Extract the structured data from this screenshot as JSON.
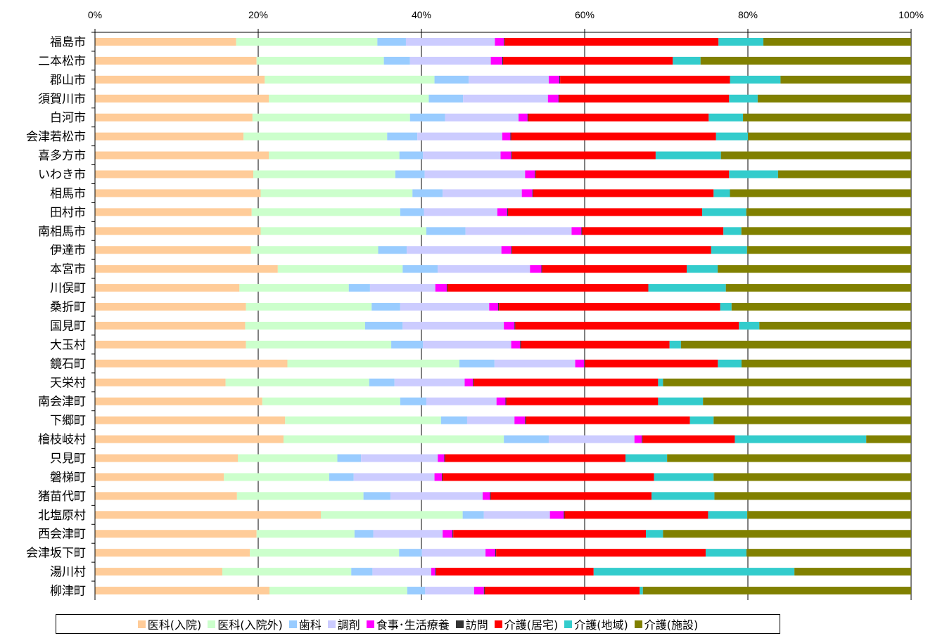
{
  "chart_data": {
    "type": "bar",
    "orientation": "horizontal",
    "stacked": true,
    "percent": true,
    "xlim": [
      0,
      100
    ],
    "x_ticks": [
      "0%",
      "20%",
      "40%",
      "60%",
      "80%",
      "100%"
    ],
    "x_axis_position": "top",
    "grid": true,
    "legend_position": "bottom",
    "categories": [
      "福島市",
      "二本松市",
      "郡山市",
      "須賀川市",
      "白河市",
      "会津若松市",
      "喜多方市",
      "いわき市",
      "相馬市",
      "田村市",
      "南相馬市",
      "伊達市",
      "本宮市",
      "川俣町",
      "桑折町",
      "国見町",
      "大玉村",
      "鏡石町",
      "天栄村",
      "南会津町",
      "下郷町",
      "檜枝岐村",
      "只見町",
      "磐梯町",
      "猪苗代町",
      "北塩原村",
      "西会津町",
      "会津坂下町",
      "湯川村",
      "柳津町"
    ],
    "series": [
      {
        "name": "医科(入院)",
        "color": "#FFCC99",
        "values": [
          17.3,
          19.8,
          20.8,
          21.3,
          19.3,
          18.2,
          21.3,
          19.4,
          20.3,
          19.2,
          20.3,
          19.1,
          22.4,
          17.7,
          18.5,
          18.4,
          18.5,
          23.6,
          16.0,
          20.5,
          23.3,
          23.1,
          17.5,
          15.8,
          17.4,
          27.7,
          19.8,
          19.0,
          15.6,
          21.4
        ]
      },
      {
        "name": "医科(入院外)",
        "color": "#CCFFCC",
        "values": [
          17.3,
          15.6,
          20.8,
          19.6,
          19.3,
          17.6,
          16.0,
          17.4,
          18.6,
          18.2,
          20.3,
          15.6,
          15.3,
          13.4,
          15.4,
          14.7,
          17.8,
          21.1,
          17.6,
          16.9,
          19.1,
          27.0,
          12.2,
          12.9,
          15.5,
          17.4,
          12.0,
          18.3,
          15.8,
          16.9
        ]
      },
      {
        "name": "歯科",
        "color": "#99CCFF",
        "values": [
          3.5,
          3.2,
          4.2,
          4.2,
          4.3,
          3.7,
          2.9,
          3.6,
          3.7,
          2.9,
          4.8,
          3.5,
          4.3,
          2.6,
          3.5,
          4.6,
          3.9,
          4.3,
          3.1,
          3.2,
          3.2,
          5.5,
          2.9,
          3.0,
          3.3,
          2.6,
          2.3,
          2.8,
          2.6,
          2.2
        ]
      },
      {
        "name": "調剤",
        "color": "#CCCCFF",
        "values": [
          10.9,
          9.9,
          9.8,
          10.4,
          9.0,
          10.4,
          9.5,
          12.3,
          9.7,
          9.0,
          13.0,
          11.6,
          11.3,
          8.0,
          10.9,
          12.4,
          10.8,
          9.9,
          8.6,
          8.6,
          5.8,
          10.5,
          9.4,
          9.9,
          11.3,
          8.1,
          8.5,
          7.8,
          7.2,
          6.0
        ]
      },
      {
        "name": "食事･生活療養",
        "color": "#FF00FF",
        "values": [
          1.1,
          1.4,
          1.3,
          1.3,
          1.1,
          1.0,
          1.3,
          1.2,
          1.3,
          1.2,
          1.2,
          1.2,
          1.4,
          1.4,
          1.1,
          1.3,
          1.1,
          1.1,
          1.0,
          1.1,
          1.3,
          0.9,
          0.8,
          0.9,
          0.9,
          1.7,
          1.2,
          1.2,
          0.5,
          1.2
        ]
      },
      {
        "name": "訪問",
        "color": "#333333",
        "values": [
          0.1,
          0.1,
          0.1,
          0.1,
          0.1,
          0.1,
          0.1,
          0.1,
          0.1,
          0.1,
          0.1,
          0.1,
          0.1,
          0.1,
          0.1,
          0.1,
          0.1,
          0.1,
          0.1,
          0.1,
          0.1,
          0.1,
          0.1,
          0.1,
          0.1,
          0.1,
          0.1,
          0.1,
          0.1,
          0.1
        ]
      },
      {
        "name": "介護(居宅)",
        "color": "#FF0000",
        "values": [
          26.2,
          20.8,
          20.8,
          20.8,
          22.1,
          25.1,
          17.6,
          23.7,
          22.1,
          23.8,
          17.3,
          24.4,
          17.7,
          24.6,
          27.1,
          27.4,
          18.2,
          16.3,
          22.6,
          18.6,
          20.1,
          11.3,
          22.1,
          25.9,
          19.7,
          17.6,
          23.6,
          25.7,
          19.3,
          19.0
        ]
      },
      {
        "name": "介護(地域)",
        "color": "#33CCCC",
        "values": [
          5.5,
          3.4,
          6.2,
          3.5,
          4.2,
          3.9,
          8.0,
          6.0,
          2.0,
          5.4,
          2.2,
          4.4,
          3.8,
          9.5,
          1.4,
          2.5,
          1.4,
          2.9,
          0.6,
          5.5,
          2.9,
          16.1,
          5.1,
          7.3,
          7.7,
          4.8,
          2.1,
          5.0,
          24.6,
          0.4
        ]
      },
      {
        "name": "介護(施設)",
        "color": "#808000",
        "values": [
          18.1,
          25.8,
          16.0,
          18.8,
          20.6,
          20.0,
          23.3,
          16.3,
          22.2,
          20.2,
          20.8,
          20.1,
          23.7,
          22.7,
          22.0,
          18.6,
          28.2,
          20.8,
          30.4,
          25.5,
          24.2,
          5.5,
          29.9,
          24.2,
          24.1,
          20.1,
          30.4,
          20.2,
          14.3,
          32.9
        ]
      }
    ]
  }
}
